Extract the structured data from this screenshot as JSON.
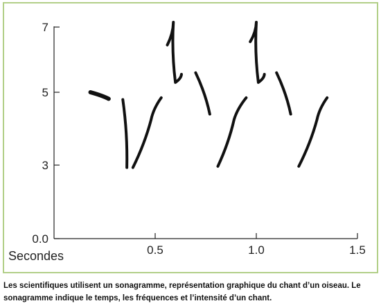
{
  "chart_data": {
    "type": "scatter",
    "x_unit_label": "Secondes",
    "x_ticks": [
      "0.5",
      "1.0",
      "1.5"
    ],
    "y_ticks": [
      "0.0",
      "3",
      "5",
      "7"
    ],
    "xlim": [
      0,
      1.5
    ],
    "grid": false,
    "series": [
      {
        "values": [
          {
            "x": 0.18,
            "y": 5.0
          },
          {
            "x": 0.27,
            "y": 4.82
          },
          {
            "x": 0.34,
            "y": 4.8
          },
          {
            "x": 0.36,
            "y": 2.9
          },
          {
            "x": 0.39,
            "y": 2.9
          },
          {
            "x": 0.48,
            "y": 4.25
          },
          {
            "x": 0.53,
            "y": 4.85
          },
          {
            "x": 0.56,
            "y": 6.45
          },
          {
            "x": 0.59,
            "y": 7.15
          },
          {
            "x": 0.6,
            "y": 5.3
          },
          {
            "x": 0.63,
            "y": 5.55
          },
          {
            "x": 0.7,
            "y": 5.6
          },
          {
            "x": 0.77,
            "y": 4.4
          },
          {
            "x": 0.81,
            "y": 2.95
          },
          {
            "x": 0.89,
            "y": 4.25
          },
          {
            "x": 0.95,
            "y": 4.85
          },
          {
            "x": 0.97,
            "y": 6.55
          },
          {
            "x": 1.0,
            "y": 7.15
          },
          {
            "x": 1.01,
            "y": 5.3
          },
          {
            "x": 1.04,
            "y": 5.55
          },
          {
            "x": 1.1,
            "y": 5.6
          },
          {
            "x": 1.17,
            "y": 4.4
          },
          {
            "x": 1.21,
            "y": 2.95
          },
          {
            "x": 1.3,
            "y": 4.25
          },
          {
            "x": 1.35,
            "y": 4.85
          }
        ]
      }
    ]
  },
  "caption": {
    "line1": "Les scientifiques utilisent un sonagramme, représentation graphique du chant d’un oiseau. Le",
    "line2": "sonagramme indique le temps, les fréquences et l’intensité d’un chant."
  },
  "colors": {
    "frame_border": "#b2cf88",
    "ink": "#111111"
  }
}
